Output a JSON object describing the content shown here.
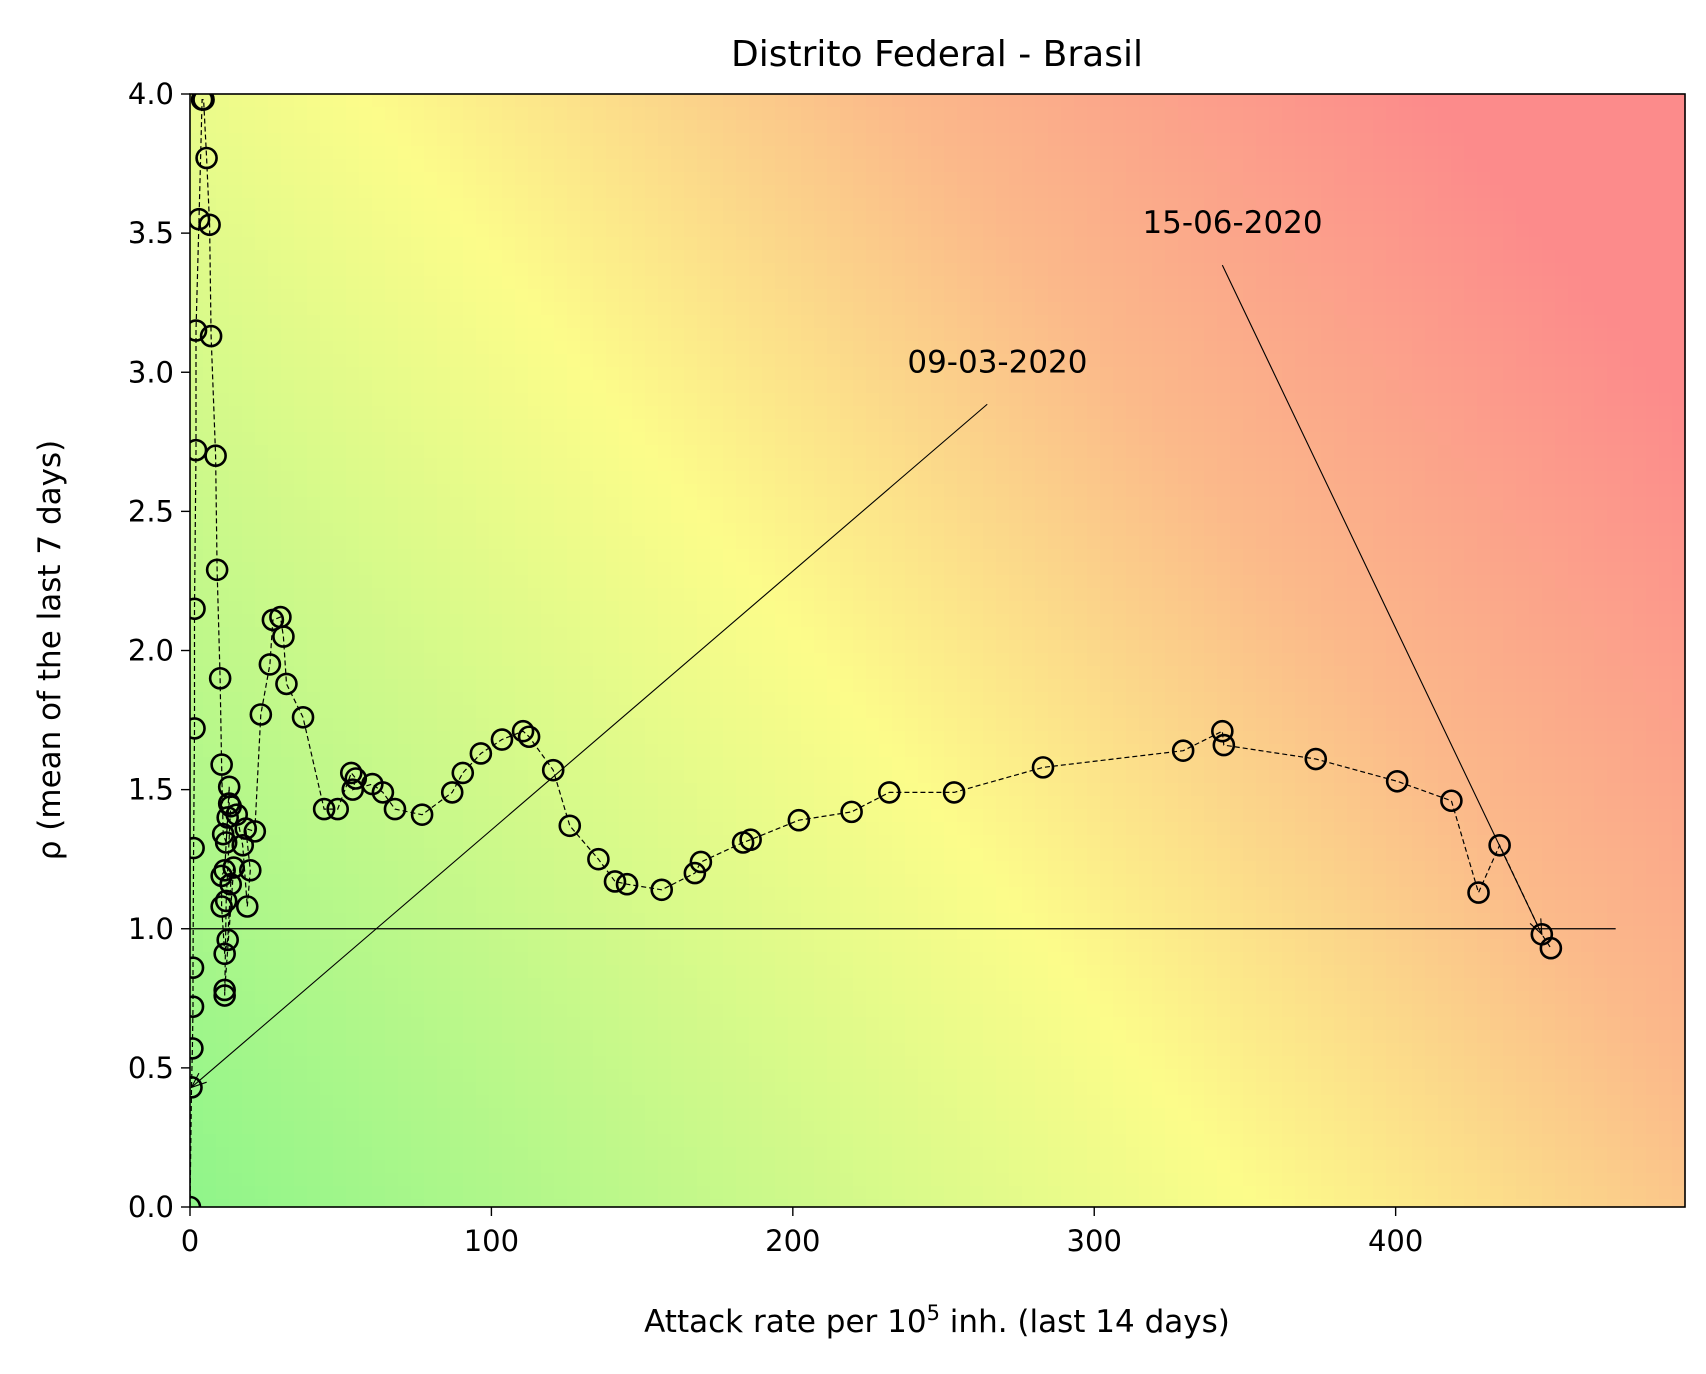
{
  "chart_data": {
    "type": "scatter",
    "title": "Distrito Federal - Brasil",
    "xlabel": "Attack rate per 10",
    "xlabel_sup": "5",
    "xlabel_tail": " inh. (last 14 days)",
    "ylabel": "ρ (mean of the last 7 days)",
    "xlim": [
      0,
      496
    ],
    "ylim": [
      0,
      4
    ],
    "xticks": [
      0,
      100,
      200,
      300,
      400
    ],
    "yticks": [
      0.0,
      0.5,
      1.0,
      1.5,
      2.0,
      2.5,
      3.0,
      3.5,
      4.0
    ],
    "xtick_labels": [
      "0",
      "100",
      "200",
      "300",
      "400"
    ],
    "ytick_labels": [
      "0.0",
      "0.5",
      "1.0",
      "1.5",
      "2.0",
      "2.5",
      "3.0",
      "3.5",
      "4.0"
    ],
    "reference_line": {
      "y": 1.0,
      "x_range": [
        0,
        473
      ]
    },
    "grid": false,
    "background": "risk gradient (green low → yellow → red high)",
    "colors": {
      "green": "#8ff58a",
      "yellow": "#fcfc8a",
      "orange": "#fbb98a",
      "red": "#fc8b8b",
      "marker_edge": "#000000"
    },
    "marker": "open-circle",
    "line_style": "dashed",
    "series": [
      {
        "x": [
          0,
          0.5,
          0.8,
          1.0,
          1.0,
          1.2,
          1.5,
          1.5,
          2.0,
          2.0,
          3.0,
          4.0,
          4.5,
          5.5,
          6.5,
          7.0,
          8.5,
          9.0,
          10.0,
          10.5,
          11.0,
          12.0,
          12.5,
          13.0,
          13.0,
          11.5,
          10.5,
          10.5,
          11.5,
          12.5,
          13.5,
          14.5,
          11.5,
          11.5,
          12.0,
          13.5,
          15.5,
          17.5,
          19.0,
          20.0,
          18.5,
          21.5,
          23.5,
          26.5,
          27.5,
          30.0,
          31.0,
          32.0,
          37.5,
          44.5,
          49.0,
          53.5,
          55.0,
          54.0,
          60.5,
          64.0,
          68.0,
          77.0,
          87.0,
          90.5,
          96.5,
          103.5,
          110.5,
          112.5,
          120.5,
          126.0,
          135.5,
          141.0,
          145.0,
          156.5,
          167.5,
          169.5,
          183.5,
          186.0,
          202.0,
          219.5,
          232.0,
          253.5,
          283.0,
          329.5,
          342.5,
          343.0,
          373.5,
          400.5,
          418.5,
          427.5,
          434.5,
          448.5,
          451.5
        ],
        "y": [
          0.0,
          0.43,
          0.57,
          0.72,
          0.86,
          1.29,
          1.72,
          2.15,
          2.72,
          3.15,
          3.55,
          3.98,
          3.98,
          3.77,
          3.53,
          3.13,
          2.7,
          2.29,
          1.9,
          1.59,
          1.34,
          1.31,
          1.4,
          1.45,
          1.51,
          1.21,
          1.19,
          1.08,
          0.91,
          0.96,
          1.16,
          1.22,
          0.78,
          0.76,
          1.1,
          1.44,
          1.41,
          1.3,
          1.08,
          1.21,
          1.36,
          1.35,
          1.77,
          1.95,
          2.11,
          2.12,
          2.05,
          1.88,
          1.76,
          1.43,
          1.43,
          1.56,
          1.54,
          1.5,
          1.52,
          1.49,
          1.43,
          1.41,
          1.49,
          1.56,
          1.63,
          1.68,
          1.71,
          1.69,
          1.57,
          1.37,
          1.25,
          1.17,
          1.16,
          1.14,
          1.2,
          1.24,
          1.31,
          1.32,
          1.39,
          1.42,
          1.49,
          1.49,
          1.58,
          1.64,
          1.71,
          1.66,
          1.61,
          1.53,
          1.46,
          1.13,
          1.3,
          0.98,
          0.93
        ]
      }
    ],
    "annotations": [
      {
        "text": "09-03-2020",
        "text_at": [
          238,
          3.0
        ],
        "points_to": [
          0.5,
          0.43
        ]
      },
      {
        "text": "15-06-2020",
        "text_at": [
          316,
          3.5
        ],
        "points_to": [
          448.5,
          0.98
        ]
      }
    ]
  }
}
